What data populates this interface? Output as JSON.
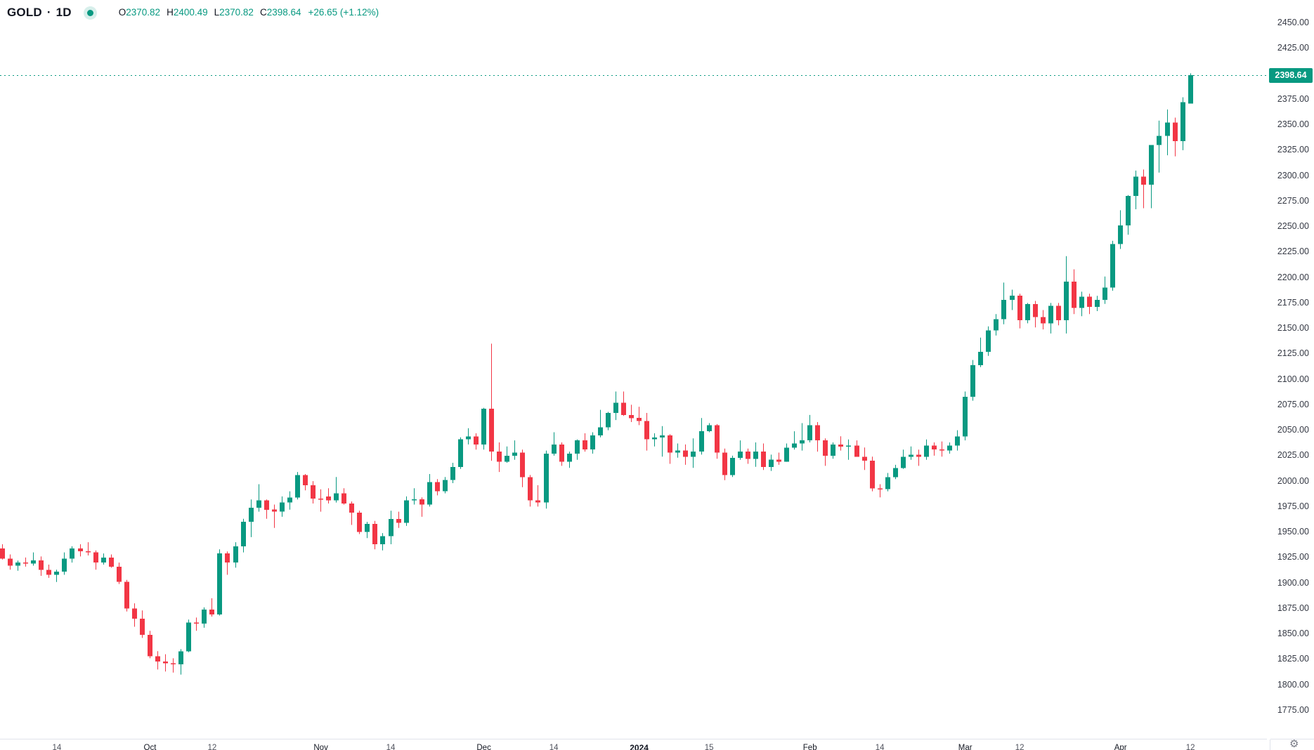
{
  "legend": {
    "symbol": "GOLD",
    "separator": "·",
    "interval": "1D",
    "ohlc": {
      "open_label": "O",
      "open": "2370.82",
      "high_label": "H",
      "high": "2400.49",
      "low_label": "L",
      "low": "2370.82",
      "close_label": "C",
      "close": "2398.64",
      "change": "+26.65 (+1.12%)"
    }
  },
  "icons": {
    "status": "market-status-dot",
    "settings": "gear-icon",
    "settings_glyph": "⚙"
  },
  "chart_data": {
    "type": "candlestick",
    "title": "GOLD · 1D",
    "symbol": "GOLD",
    "interval": "1D",
    "grid": false,
    "legend_position": "top-left",
    "up_color": "#089981",
    "down_color": "#F23645",
    "last_price": 2398.64,
    "last_price_label": "2398.64",
    "ylim": [
      1747,
      2472.5
    ],
    "price_ticks": [
      2450,
      2425,
      2375,
      2350,
      2325,
      2300,
      2275,
      2250,
      2225,
      2200,
      2175,
      2150,
      2125,
      2100,
      2075,
      2050,
      2025,
      2000,
      1975,
      1950,
      1925,
      1900,
      1875,
      1850,
      1825,
      1800,
      1775
    ],
    "time_ticks": [
      {
        "label": "14",
        "index": 7,
        "kind": "day"
      },
      {
        "label": "Oct",
        "index": 19,
        "kind": "month"
      },
      {
        "label": "12",
        "index": 27,
        "kind": "day"
      },
      {
        "label": "Nov",
        "index": 41,
        "kind": "month"
      },
      {
        "label": "14",
        "index": 50,
        "kind": "day"
      },
      {
        "label": "Dec",
        "index": 62,
        "kind": "month"
      },
      {
        "label": "14",
        "index": 71,
        "kind": "day"
      },
      {
        "label": "2024",
        "index": 82,
        "kind": "year"
      },
      {
        "label": "15",
        "index": 91,
        "kind": "day"
      },
      {
        "label": "Feb",
        "index": 104,
        "kind": "month"
      },
      {
        "label": "14",
        "index": 113,
        "kind": "day"
      },
      {
        "label": "Mar",
        "index": 124,
        "kind": "month"
      },
      {
        "label": "12",
        "index": 131,
        "kind": "day"
      },
      {
        "label": "Apr",
        "index": 144,
        "kind": "month"
      },
      {
        "label": "12",
        "index": 153,
        "kind": "day"
      }
    ],
    "candles": [
      [
        1934,
        1938,
        1923,
        1924
      ],
      [
        1924,
        1928,
        1913,
        1917
      ],
      [
        1917,
        1922,
        1912,
        1920
      ],
      [
        1920,
        1925,
        1916,
        1919
      ],
      [
        1919,
        1930,
        1917,
        1922
      ],
      [
        1922,
        1926,
        1907,
        1913
      ],
      [
        1913,
        1918,
        1905,
        1908
      ],
      [
        1908,
        1913,
        1901,
        1911
      ],
      [
        1911,
        1930,
        1908,
        1924
      ],
      [
        1924,
        1936,
        1920,
        1934
      ],
      [
        1934,
        1938,
        1926,
        1931
      ],
      [
        1931,
        1940,
        1927,
        1930
      ],
      [
        1930,
        1932,
        1913,
        1920
      ],
      [
        1920,
        1929,
        1918,
        1925
      ],
      [
        1925,
        1928,
        1915,
        1916
      ],
      [
        1916,
        1920,
        1899,
        1901
      ],
      [
        1901,
        1903,
        1872,
        1875
      ],
      [
        1875,
        1880,
        1857,
        1865
      ],
      [
        1865,
        1873,
        1846,
        1849
      ],
      [
        1849,
        1853,
        1826,
        1828
      ],
      [
        1828,
        1833,
        1815,
        1823
      ],
      [
        1823,
        1830,
        1813,
        1821
      ],
      [
        1821,
        1826,
        1812,
        1820
      ],
      [
        1820,
        1835,
        1810,
        1833
      ],
      [
        1833,
        1864,
        1832,
        1861
      ],
      [
        1861,
        1866,
        1853,
        1860
      ],
      [
        1860,
        1876,
        1856,
        1874
      ],
      [
        1874,
        1885,
        1867,
        1869
      ],
      [
        1869,
        1933,
        1868,
        1929
      ],
      [
        1929,
        1931,
        1908,
        1920
      ],
      [
        1920,
        1940,
        1915,
        1936
      ],
      [
        1936,
        1963,
        1930,
        1960
      ],
      [
        1960,
        1982,
        1945,
        1974
      ],
      [
        1974,
        1997,
        1970,
        1981
      ],
      [
        1981,
        1982,
        1963,
        1972
      ],
      [
        1972,
        1977,
        1954,
        1970
      ],
      [
        1970,
        1985,
        1965,
        1979
      ],
      [
        1979,
        1990,
        1972,
        1984
      ],
      [
        1984,
        2009,
        1982,
        2006
      ],
      [
        2006,
        2007,
        1991,
        1996
      ],
      [
        1996,
        2000,
        1978,
        1983
      ],
      [
        1983,
        1992,
        1970,
        1982
      ],
      [
        1985,
        1993,
        1978,
        1981
      ],
      [
        1981,
        2004,
        1979,
        1988
      ],
      [
        1988,
        1993,
        1977,
        1978
      ],
      [
        1978,
        1980,
        1957,
        1969
      ],
      [
        1969,
        1971,
        1948,
        1950
      ],
      [
        1950,
        1960,
        1944,
        1958
      ],
      [
        1958,
        1961,
        1933,
        1938
      ],
      [
        1938,
        1949,
        1932,
        1946
      ],
      [
        1946,
        1971,
        1938,
        1963
      ],
      [
        1963,
        1970,
        1954,
        1959
      ],
      [
        1959,
        1985,
        1956,
        1981
      ],
      [
        1981,
        1993,
        1977,
        1982
      ],
      [
        1982,
        1984,
        1965,
        1977
      ],
      [
        1977,
        2007,
        1975,
        1999
      ],
      [
        1999,
        2002,
        1986,
        1990
      ],
      [
        1990,
        2004,
        1988,
        2001
      ],
      [
        2001,
        2018,
        1998,
        2014
      ],
      [
        2014,
        2043,
        2012,
        2041
      ],
      [
        2041,
        2052,
        2036,
        2044
      ],
      [
        2044,
        2047,
        2031,
        2036
      ],
      [
        2036,
        2072,
        2031,
        2071
      ],
      [
        2071,
        2135,
        2020,
        2029
      ],
      [
        2029,
        2038,
        2009,
        2019
      ],
      [
        2019,
        2034,
        2018,
        2025
      ],
      [
        2025,
        2040,
        2021,
        2028
      ],
      [
        2028,
        2031,
        1994,
        2004
      ],
      [
        2004,
        2006,
        1975,
        1981
      ],
      [
        1981,
        1996,
        1975,
        1979
      ],
      [
        1979,
        2030,
        1973,
        2027
      ],
      [
        2027,
        2048,
        2025,
        2036
      ],
      [
        2036,
        2038,
        2015,
        2019
      ],
      [
        2019,
        2029,
        2013,
        2027
      ],
      [
        2027,
        2041,
        2021,
        2040
      ],
      [
        2040,
        2047,
        2029,
        2031
      ],
      [
        2031,
        2048,
        2027,
        2045
      ],
      [
        2045,
        2070,
        2043,
        2053
      ],
      [
        2053,
        2068,
        2050,
        2067
      ],
      [
        2067,
        2088,
        2060,
        2077
      ],
      [
        2077,
        2088,
        2064,
        2065
      ],
      [
        2065,
        2075,
        2058,
        2062
      ],
      [
        2062,
        2073,
        2055,
        2059
      ],
      [
        2059,
        2067,
        2030,
        2041
      ],
      [
        2041,
        2047,
        2034,
        2043
      ],
      [
        2043,
        2054,
        2024,
        2045
      ],
      [
        2045,
        2046,
        2017,
        2028
      ],
      [
        2028,
        2037,
        2023,
        2030
      ],
      [
        2030,
        2036,
        2016,
        2024
      ],
      [
        2024,
        2042,
        2013,
        2029
      ],
      [
        2029,
        2062,
        2026,
        2049
      ],
      [
        2049,
        2057,
        2048,
        2055
      ],
      [
        2055,
        2056,
        2022,
        2028
      ],
      [
        2028,
        2032,
        2001,
        2006
      ],
      [
        2006,
        2025,
        2004,
        2023
      ],
      [
        2023,
        2040,
        2021,
        2029
      ],
      [
        2029,
        2032,
        2017,
        2022
      ],
      [
        2022,
        2038,
        2014,
        2029
      ],
      [
        2029,
        2037,
        2011,
        2014
      ],
      [
        2014,
        2026,
        2010,
        2021
      ],
      [
        2021,
        2028,
        2016,
        2019
      ],
      [
        2019,
        2037,
        2019,
        2033
      ],
      [
        2033,
        2049,
        2031,
        2037
      ],
      [
        2037,
        2057,
        2030,
        2040
      ],
      [
        2040,
        2065,
        2038,
        2055
      ],
      [
        2055,
        2058,
        2029,
        2040
      ],
      [
        2040,
        2042,
        2015,
        2025
      ],
      [
        2025,
        2038,
        2022,
        2036
      ],
      [
        2036,
        2044,
        2030,
        2034
      ],
      [
        2034,
        2041,
        2021,
        2035
      ],
      [
        2035,
        2040,
        2024,
        2024
      ],
      [
        2024,
        2033,
        2011,
        2020
      ],
      [
        2020,
        2024,
        1990,
        1993
      ],
      [
        1993,
        1997,
        1984,
        1992
      ],
      [
        1992,
        2008,
        1990,
        2004
      ],
      [
        2004,
        2016,
        2002,
        2013
      ],
      [
        2013,
        2031,
        2012,
        2024
      ],
      [
        2024,
        2034,
        2021,
        2026
      ],
      [
        2026,
        2031,
        2015,
        2024
      ],
      [
        2024,
        2041,
        2021,
        2035
      ],
      [
        2035,
        2038,
        2025,
        2031
      ],
      [
        2031,
        2039,
        2024,
        2030
      ],
      [
        2030,
        2038,
        2027,
        2035
      ],
      [
        2035,
        2050,
        2030,
        2044
      ],
      [
        2044,
        2088,
        2040,
        2083
      ],
      [
        2083,
        2119,
        2079,
        2114
      ],
      [
        2114,
        2141,
        2112,
        2127
      ],
      [
        2127,
        2152,
        2123,
        2148
      ],
      [
        2148,
        2164,
        2143,
        2159
      ],
      [
        2159,
        2195,
        2154,
        2178
      ],
      [
        2178,
        2188,
        2168,
        2182
      ],
      [
        2182,
        2184,
        2150,
        2158
      ],
      [
        2158,
        2175,
        2155,
        2174
      ],
      [
        2174,
        2177,
        2151,
        2161
      ],
      [
        2161,
        2168,
        2149,
        2155
      ],
      [
        2155,
        2175,
        2145,
        2172
      ],
      [
        2172,
        2175,
        2153,
        2158
      ],
      [
        2158,
        2221,
        2145,
        2196
      ],
      [
        2196,
        2208,
        2164,
        2170
      ],
      [
        2170,
        2186,
        2162,
        2181
      ],
      [
        2181,
        2184,
        2164,
        2171
      ],
      [
        2171,
        2182,
        2167,
        2178
      ],
      [
        2178,
        2201,
        2174,
        2190
      ],
      [
        2190,
        2236,
        2187,
        2233
      ],
      [
        2233,
        2266,
        2228,
        2251
      ],
      [
        2251,
        2281,
        2242,
        2280
      ],
      [
        2280,
        2305,
        2267,
        2299
      ],
      [
        2299,
        2306,
        2268,
        2291
      ],
      [
        2291,
        2330,
        2268,
        2330
      ],
      [
        2330,
        2354,
        2303,
        2339
      ],
      [
        2339,
        2365,
        2320,
        2352
      ],
      [
        2352,
        2357,
        2319,
        2334
      ],
      [
        2334,
        2377,
        2325,
        2372
      ],
      [
        2370.82,
        2400.49,
        2370.82,
        2398.64
      ]
    ]
  }
}
